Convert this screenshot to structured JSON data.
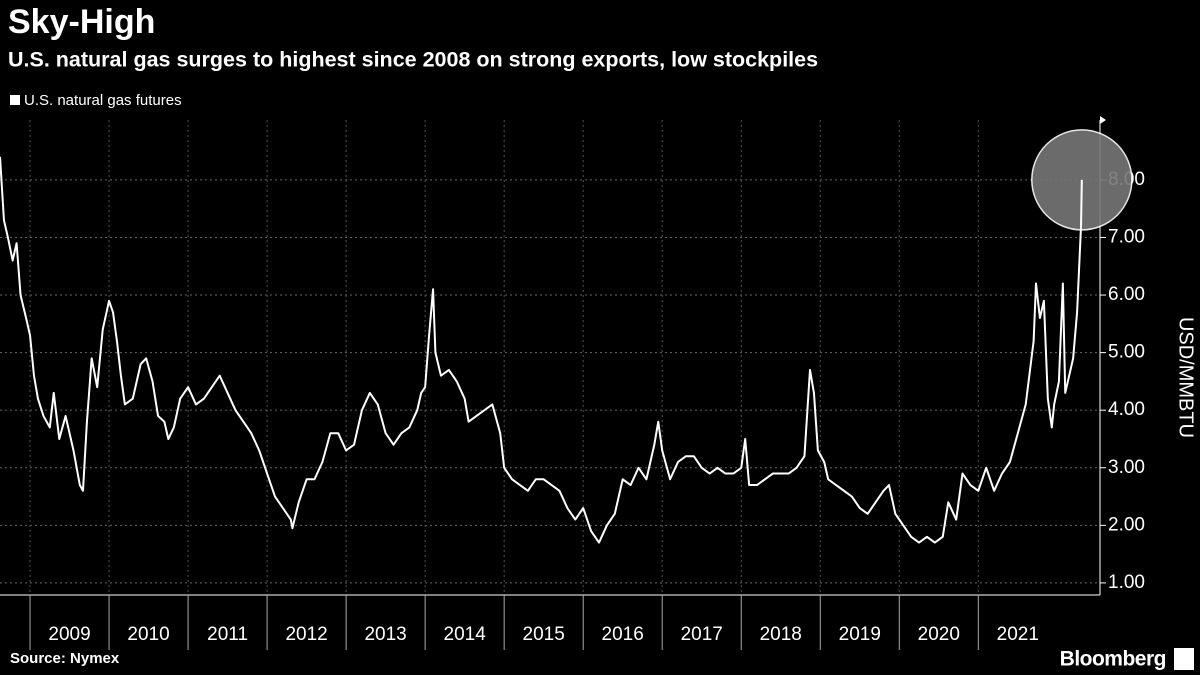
{
  "chart_data": {
    "type": "line",
    "title": "Sky-High",
    "subtitle": "U.S. natural gas surges to highest since 2008 on strong exports, low stockpiles",
    "y_label": "USD/MMBTU",
    "source": "Source: Nymex",
    "brand": "Bloomberg",
    "series": [
      {
        "name": "U.S. natural gas futures",
        "color": "#ffffff",
        "x": [
          2008.62,
          2008.67,
          2008.72,
          2008.78,
          2008.83,
          2008.88,
          2008.95,
          2009.0,
          2009.05,
          2009.1,
          2009.17,
          2009.25,
          2009.3,
          2009.37,
          2009.45,
          2009.55,
          2009.63,
          2009.67,
          2009.72,
          2009.78,
          2009.85,
          2009.92,
          2010.0,
          2010.05,
          2010.1,
          2010.15,
          2010.2,
          2010.3,
          2010.4,
          2010.47,
          2010.55,
          2010.62,
          2010.7,
          2010.75,
          2010.82,
          2010.9,
          2011.0,
          2011.1,
          2011.2,
          2011.3,
          2011.4,
          2011.5,
          2011.6,
          2011.7,
          2011.8,
          2011.9,
          2012.0,
          2012.1,
          2012.2,
          2012.3,
          2012.32,
          2012.4,
          2012.5,
          2012.6,
          2012.7,
          2012.8,
          2012.9,
          2013.0,
          2013.1,
          2013.2,
          2013.3,
          2013.4,
          2013.5,
          2013.6,
          2013.7,
          2013.8,
          2013.9,
          2013.95,
          2014.0,
          2014.05,
          2014.1,
          2014.13,
          2014.2,
          2014.3,
          2014.4,
          2014.5,
          2014.55,
          2014.65,
          2014.75,
          2014.85,
          2014.95,
          2015.0,
          2015.1,
          2015.2,
          2015.3,
          2015.4,
          2015.5,
          2015.6,
          2015.7,
          2015.8,
          2015.9,
          2016.0,
          2016.1,
          2016.2,
          2016.3,
          2016.4,
          2016.5,
          2016.6,
          2016.7,
          2016.8,
          2016.9,
          2016.95,
          2017.0,
          2017.1,
          2017.2,
          2017.3,
          2017.4,
          2017.5,
          2017.6,
          2017.7,
          2017.8,
          2017.9,
          2018.0,
          2018.05,
          2018.1,
          2018.2,
          2018.3,
          2018.4,
          2018.5,
          2018.6,
          2018.7,
          2018.8,
          2018.87,
          2018.92,
          2018.97,
          2019.05,
          2019.1,
          2019.2,
          2019.3,
          2019.4,
          2019.5,
          2019.6,
          2019.7,
          2019.8,
          2019.87,
          2019.95,
          2020.05,
          2020.15,
          2020.25,
          2020.35,
          2020.45,
          2020.55,
          2020.62,
          2020.72,
          2020.8,
          2020.9,
          2021.0,
          2021.1,
          2021.2,
          2021.3,
          2021.4,
          2021.5,
          2021.6,
          2021.7,
          2021.73,
          2021.78,
          2021.83,
          2021.88,
          2021.93,
          2021.96,
          2022.02,
          2022.07,
          2022.1,
          2022.15,
          2022.2,
          2022.25,
          2022.3,
          2022.31
        ],
        "values": [
          8.4,
          7.3,
          7.0,
          6.6,
          6.9,
          6.0,
          5.6,
          5.3,
          4.6,
          4.2,
          3.9,
          3.7,
          4.3,
          3.5,
          3.9,
          3.3,
          2.7,
          2.6,
          3.8,
          4.9,
          4.4,
          5.4,
          5.9,
          5.7,
          5.2,
          4.6,
          4.1,
          4.2,
          4.8,
          4.9,
          4.5,
          3.9,
          3.8,
          3.5,
          3.7,
          4.2,
          4.4,
          4.1,
          4.2,
          4.4,
          4.6,
          4.3,
          4.0,
          3.8,
          3.6,
          3.3,
          2.9,
          2.5,
          2.3,
          2.1,
          1.95,
          2.4,
          2.8,
          2.8,
          3.1,
          3.6,
          3.6,
          3.3,
          3.4,
          4.0,
          4.3,
          4.1,
          3.6,
          3.4,
          3.6,
          3.7,
          4.0,
          4.3,
          4.4,
          5.3,
          6.1,
          5.0,
          4.6,
          4.7,
          4.5,
          4.2,
          3.8,
          3.9,
          4.0,
          4.1,
          3.6,
          3.0,
          2.8,
          2.7,
          2.6,
          2.8,
          2.8,
          2.7,
          2.6,
          2.3,
          2.1,
          2.3,
          1.9,
          1.7,
          2.0,
          2.2,
          2.8,
          2.7,
          3.0,
          2.8,
          3.4,
          3.8,
          3.3,
          2.8,
          3.1,
          3.2,
          3.2,
          3.0,
          2.9,
          3.0,
          2.9,
          2.9,
          3.0,
          3.5,
          2.7,
          2.7,
          2.8,
          2.9,
          2.9,
          2.9,
          3.0,
          3.2,
          4.7,
          4.3,
          3.3,
          3.1,
          2.8,
          2.7,
          2.6,
          2.5,
          2.3,
          2.2,
          2.4,
          2.6,
          2.7,
          2.2,
          2.0,
          1.8,
          1.7,
          1.8,
          1.7,
          1.8,
          2.4,
          2.1,
          2.9,
          2.7,
          2.6,
          3.0,
          2.6,
          2.9,
          3.1,
          3.6,
          4.1,
          5.2,
          6.2,
          5.6,
          5.9,
          4.2,
          3.7,
          4.1,
          4.5,
          6.2,
          4.3,
          4.6,
          4.9,
          5.7,
          7.2,
          8.0
        ]
      }
    ],
    "xlim": [
      2008.62,
      2022.54
    ],
    "xticks": [
      2009,
      2010,
      2011,
      2012,
      2013,
      2014,
      2015,
      2016,
      2017,
      2018,
      2019,
      2020,
      2021
    ],
    "ylim": [
      0.79,
      9.04
    ],
    "yticks": [
      {
        "value": 1,
        "label": "1.00"
      },
      {
        "value": 2,
        "label": "2.00"
      },
      {
        "value": 3,
        "label": "3.00"
      },
      {
        "value": 4,
        "label": "4.00"
      },
      {
        "value": 5,
        "label": "5.00"
      },
      {
        "value": 6,
        "label": "6.00"
      },
      {
        "value": 7,
        "label": "7.00"
      },
      {
        "value": 8,
        "label": "8.00"
      }
    ],
    "grid": true,
    "legend": "top-left"
  }
}
